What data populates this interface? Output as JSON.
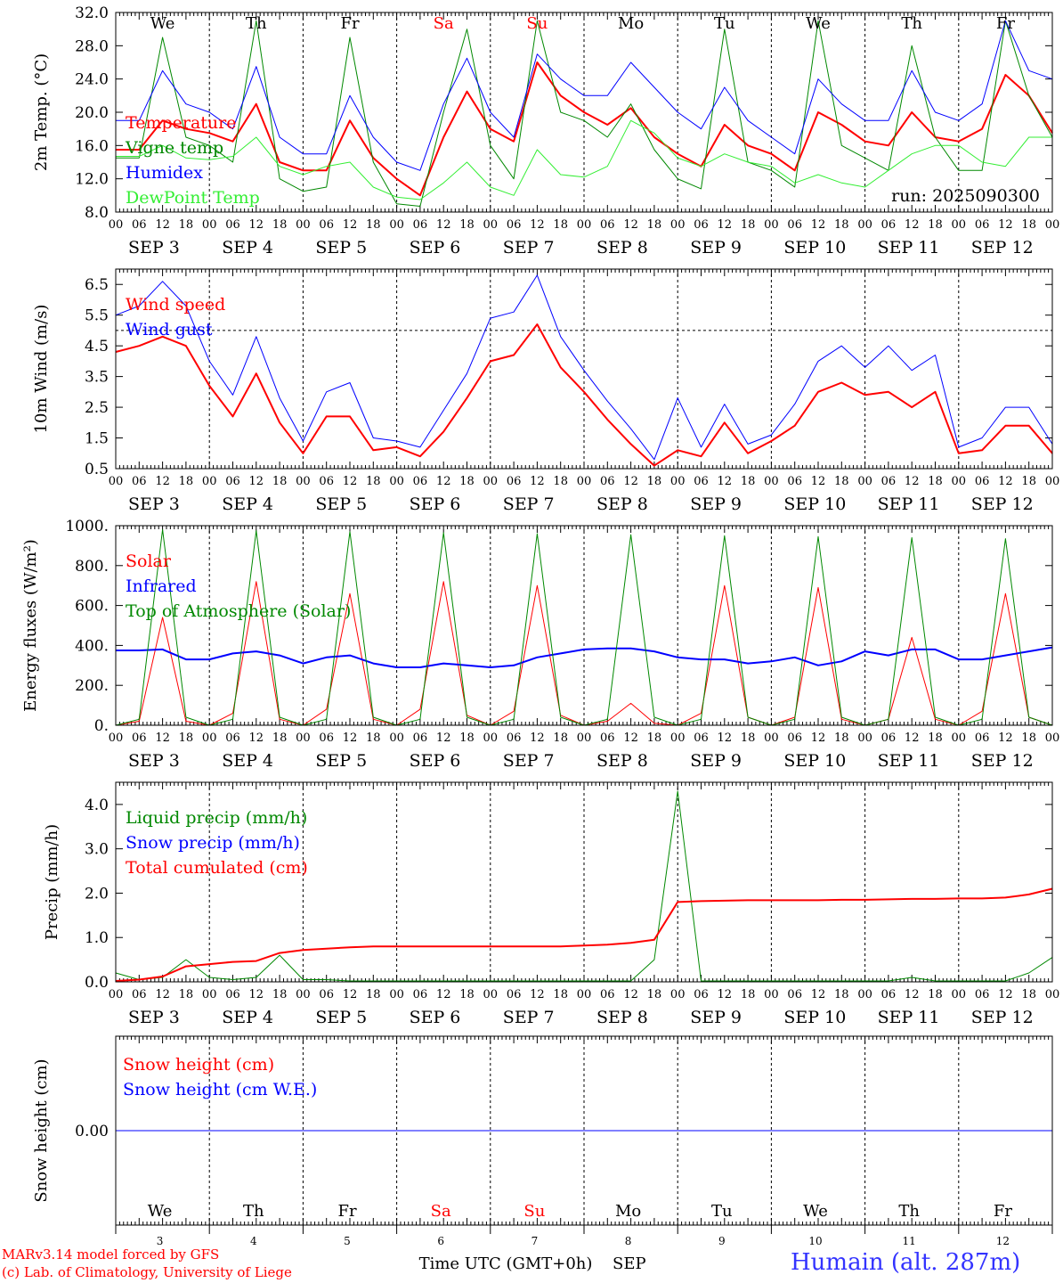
{
  "footer": {
    "model": "MARv3.14 model forced by GFS",
    "credit": "(c) Lab. of Climatology, University of Liege",
    "station": "Humain (alt. 287m)",
    "time_label": "Time UTC (GMT+0h)",
    "month_label": "SEP"
  },
  "days": [
    {
      "abbr": "We",
      "date": "SEP  3",
      "num": "3",
      "weekend": false
    },
    {
      "abbr": "Th",
      "date": "SEP  4",
      "num": "4",
      "weekend": false
    },
    {
      "abbr": "Fr",
      "date": "SEP  5",
      "num": "5",
      "weekend": false
    },
    {
      "abbr": "Sa",
      "date": "SEP  6",
      "num": "6",
      "weekend": true
    },
    {
      "abbr": "Su",
      "date": "SEP  7",
      "num": "7",
      "weekend": true
    },
    {
      "abbr": "Mo",
      "date": "SEP  8",
      "num": "8",
      "weekend": false
    },
    {
      "abbr": "Tu",
      "date": "SEP  9",
      "num": "9",
      "weekend": false
    },
    {
      "abbr": "We",
      "date": "SEP 10",
      "num": "10",
      "weekend": false
    },
    {
      "abbr": "Th",
      "date": "SEP 11",
      "num": "11",
      "weekend": false
    },
    {
      "abbr": "Fr",
      "date": "SEP 12",
      "num": "12",
      "weekend": false
    }
  ],
  "hour_ticks": [
    "00",
    "06",
    "12",
    "18"
  ],
  "colors": {
    "red": "#ff0000",
    "blue": "#0000ff",
    "green": "#008800",
    "lightgreen": "#33ee33",
    "weekend": "#ff0000"
  },
  "chart_data": [
    {
      "id": "temperature",
      "type": "line",
      "ylabel": "2m Temp. (°C)",
      "ylim": [
        8,
        32
      ],
      "yticks": [
        8,
        12,
        16,
        20,
        24,
        28,
        32
      ],
      "ytick_fmt": 1,
      "annotation": "run: 2025090300",
      "show_day_abbr": true,
      "x_hours": [
        0,
        6,
        12,
        18,
        24,
        30,
        36,
        42,
        48,
        54,
        60,
        66,
        72,
        78,
        84,
        90,
        96,
        102,
        108,
        114,
        120,
        126,
        132,
        138,
        144,
        150,
        156,
        162,
        168,
        174,
        180,
        186,
        192,
        198,
        204,
        210,
        216,
        222,
        228,
        234,
        240
      ],
      "series": [
        {
          "name": "Temperature",
          "color": "red",
          "width": 2,
          "values": [
            15.5,
            15.5,
            19,
            18,
            17.5,
            16.5,
            21,
            14,
            13,
            13,
            19,
            14.5,
            12,
            10,
            17,
            22.5,
            18,
            16.5,
            26,
            22,
            20,
            18.5,
            20.5,
            17,
            15,
            13.5,
            18.5,
            16,
            15,
            13,
            20,
            18.5,
            16.5,
            16,
            20,
            17,
            16.5,
            18,
            24.5,
            22,
            17.5
          ]
        },
        {
          "name": "Vigne temp",
          "color": "green",
          "width": 1,
          "values": [
            14.5,
            14.5,
            29,
            17,
            16,
            14,
            31,
            12,
            10.5,
            11,
            29,
            14,
            9,
            8.7,
            20,
            30,
            16,
            12,
            31,
            20,
            19,
            17,
            21,
            15.5,
            12,
            10.8,
            30,
            14,
            13,
            11,
            31,
            16,
            14.5,
            13,
            28,
            17,
            13,
            13,
            31,
            22,
            17
          ]
        },
        {
          "name": "Humidex",
          "color": "blue",
          "width": 1,
          "values": [
            19,
            19,
            25,
            21,
            20,
            18,
            25.5,
            17,
            15,
            15,
            22,
            17,
            14,
            13,
            21,
            26.5,
            20,
            17,
            27,
            24,
            22,
            22,
            26,
            23,
            20,
            18,
            23,
            19,
            17,
            15,
            24,
            21,
            19,
            19,
            25,
            20,
            19,
            21,
            31,
            25,
            24
          ]
        },
        {
          "name": "DewPoint Temp",
          "color": "lightgreen",
          "width": 1,
          "values": [
            14.7,
            14.7,
            16,
            14.5,
            14.3,
            14.7,
            17,
            13.5,
            12.5,
            13.5,
            14,
            11,
            9.8,
            9.5,
            11.5,
            14,
            11,
            10,
            15.5,
            12.5,
            12.2,
            13.5,
            19,
            17.5,
            14.5,
            13.5,
            15,
            14,
            13.5,
            11.5,
            12.5,
            11.5,
            11,
            13,
            15,
            16,
            16,
            14,
            13.5,
            17,
            17
          ]
        }
      ]
    },
    {
      "id": "wind",
      "type": "line",
      "ylabel": "10m Wind (m/s)",
      "ylim": [
        0.5,
        7.0
      ],
      "yticks": [
        0.5,
        1.5,
        2.5,
        3.5,
        4.5,
        5.5,
        6.5
      ],
      "ytick_fmt": 1,
      "ref_line": 5,
      "show_day_abbr": false,
      "x_hours": [
        0,
        6,
        12,
        18,
        24,
        30,
        36,
        42,
        48,
        54,
        60,
        66,
        72,
        78,
        84,
        90,
        96,
        102,
        108,
        114,
        120,
        126,
        132,
        138,
        144,
        150,
        156,
        162,
        168,
        174,
        180,
        186,
        192,
        198,
        204,
        210,
        216,
        222,
        228,
        234,
        240
      ],
      "series": [
        {
          "name": "Wind speed",
          "color": "red",
          "width": 2,
          "values": [
            4.3,
            4.5,
            4.8,
            4.5,
            3.2,
            2.2,
            3.6,
            2.0,
            1.0,
            2.2,
            2.2,
            1.1,
            1.2,
            0.9,
            1.7,
            2.8,
            4.0,
            4.2,
            5.2,
            3.8,
            3.0,
            2.1,
            1.3,
            0.6,
            1.1,
            0.9,
            2.0,
            1.0,
            1.4,
            1.9,
            3.0,
            3.3,
            2.9,
            3.0,
            2.5,
            3.0,
            1.0,
            1.1,
            1.9,
            1.9,
            1.0
          ]
        },
        {
          "name": "Wind gust",
          "color": "blue",
          "width": 1,
          "values": [
            5.5,
            5.8,
            6.6,
            5.8,
            4.0,
            2.9,
            4.8,
            2.8,
            1.4,
            3.0,
            3.3,
            1.5,
            1.4,
            1.2,
            2.4,
            3.6,
            5.4,
            5.6,
            6.8,
            4.8,
            3.7,
            2.7,
            1.8,
            0.8,
            2.8,
            1.2,
            2.6,
            1.3,
            1.6,
            2.6,
            4.0,
            4.5,
            3.8,
            4.5,
            3.7,
            4.2,
            1.2,
            1.5,
            2.5,
            2.5,
            1.3
          ]
        }
      ]
    },
    {
      "id": "energy",
      "type": "line",
      "ylabel": "Energy fluxes (W/m²)",
      "ylim": [
        0,
        1000
      ],
      "yticks": [
        0,
        200,
        400,
        600,
        800,
        1000
      ],
      "ytick_fmt": "dot",
      "show_day_abbr": false,
      "x_hours": [
        0,
        6,
        12,
        18,
        24,
        30,
        36,
        42,
        48,
        54,
        60,
        66,
        72,
        78,
        84,
        90,
        96,
        102,
        108,
        114,
        120,
        126,
        132,
        138,
        144,
        150,
        156,
        162,
        168,
        174,
        180,
        186,
        192,
        198,
        204,
        210,
        216,
        222,
        228,
        234,
        240
      ],
      "series": [
        {
          "name": "Solar",
          "color": "red",
          "width": 1,
          "values": [
            0,
            20,
            540,
            20,
            0,
            60,
            720,
            30,
            0,
            80,
            660,
            30,
            0,
            80,
            720,
            50,
            0,
            70,
            700,
            50,
            0,
            20,
            110,
            10,
            0,
            60,
            700,
            40,
            0,
            40,
            690,
            30,
            0,
            30,
            440,
            30,
            0,
            70,
            660,
            40,
            0
          ]
        },
        {
          "name": "Infrared",
          "color": "blue",
          "width": 2,
          "values": [
            375,
            375,
            380,
            330,
            330,
            360,
            370,
            350,
            310,
            340,
            350,
            310,
            290,
            290,
            310,
            300,
            290,
            300,
            340,
            360,
            380,
            385,
            385,
            370,
            340,
            330,
            330,
            310,
            320,
            340,
            300,
            320,
            370,
            350,
            380,
            380,
            330,
            330,
            350,
            370,
            390
          ]
        },
        {
          "name": "Top of Atmosphere (Solar)",
          "color": "green",
          "width": 1,
          "values": [
            0,
            30,
            980,
            40,
            0,
            30,
            975,
            40,
            0,
            30,
            970,
            40,
            0,
            30,
            965,
            40,
            0,
            30,
            960,
            40,
            0,
            30,
            955,
            40,
            0,
            30,
            950,
            40,
            0,
            30,
            945,
            40,
            0,
            30,
            940,
            40,
            0,
            30,
            935,
            40,
            0
          ]
        }
      ]
    },
    {
      "id": "precip",
      "type": "line",
      "ylabel": "Precip (mm/h)",
      "ylim": [
        0,
        4.5
      ],
      "yticks": [
        0.0,
        1.0,
        2.0,
        3.0,
        4.0
      ],
      "ytick_fmt": 1,
      "show_day_abbr": false,
      "x_hours": [
        0,
        6,
        12,
        18,
        24,
        30,
        36,
        42,
        48,
        54,
        60,
        66,
        72,
        78,
        84,
        90,
        96,
        102,
        108,
        114,
        120,
        126,
        132,
        138,
        144,
        150,
        156,
        162,
        168,
        174,
        180,
        186,
        192,
        198,
        204,
        210,
        216,
        222,
        228,
        234,
        240
      ],
      "series": [
        {
          "name": "Liquid precip (mm/h)",
          "color": "green",
          "width": 1,
          "values": [
            0.2,
            0.05,
            0.1,
            0.5,
            0.1,
            0.05,
            0.1,
            0.6,
            0.05,
            0.05,
            0.02,
            0.02,
            0.02,
            0.02,
            0.02,
            0.02,
            0.02,
            0.02,
            0.02,
            0.02,
            0.02,
            0.02,
            0.02,
            0.5,
            4.3,
            0.02,
            0.02,
            0.02,
            0.02,
            0.02,
            0.02,
            0.02,
            0.02,
            0.02,
            0.1,
            0.02,
            0.02,
            0.02,
            0.02,
            0.2,
            0.55
          ]
        },
        {
          "name": "Snow precip (mm/h)",
          "color": "blue",
          "width": 1,
          "values": [
            0,
            0,
            0,
            0,
            0,
            0,
            0,
            0,
            0,
            0,
            0,
            0,
            0,
            0,
            0,
            0,
            0,
            0,
            0,
            0,
            0,
            0,
            0,
            0,
            0,
            0,
            0,
            0,
            0,
            0,
            0,
            0,
            0,
            0,
            0,
            0,
            0,
            0,
            0,
            0,
            0
          ]
        },
        {
          "name": "Total cumulated (cm)",
          "color": "red",
          "width": 2,
          "values": [
            0.02,
            0.05,
            0.12,
            0.35,
            0.4,
            0.45,
            0.47,
            0.65,
            0.72,
            0.75,
            0.78,
            0.8,
            0.8,
            0.8,
            0.8,
            0.8,
            0.8,
            0.8,
            0.8,
            0.8,
            0.82,
            0.84,
            0.88,
            0.95,
            1.8,
            1.82,
            1.83,
            1.84,
            1.84,
            1.84,
            1.84,
            1.85,
            1.85,
            1.86,
            1.87,
            1.87,
            1.88,
            1.88,
            1.9,
            1.97,
            2.1
          ]
        }
      ]
    },
    {
      "id": "snow",
      "type": "line",
      "ylabel": "Snow height (cm)",
      "ylim": [
        -1,
        1
      ],
      "yticks": [
        0.0
      ],
      "ytick_fmt": 2,
      "show_day_abbr": true,
      "x_hours": [
        0,
        240
      ],
      "series": [
        {
          "name": "Snow height (cm)",
          "color": "red",
          "width": 1,
          "values": [
            0,
            0
          ]
        },
        {
          "name": "Snow height (cm W.E.)",
          "color": "blue",
          "width": 1,
          "values": [
            0,
            0
          ]
        }
      ]
    }
  ]
}
